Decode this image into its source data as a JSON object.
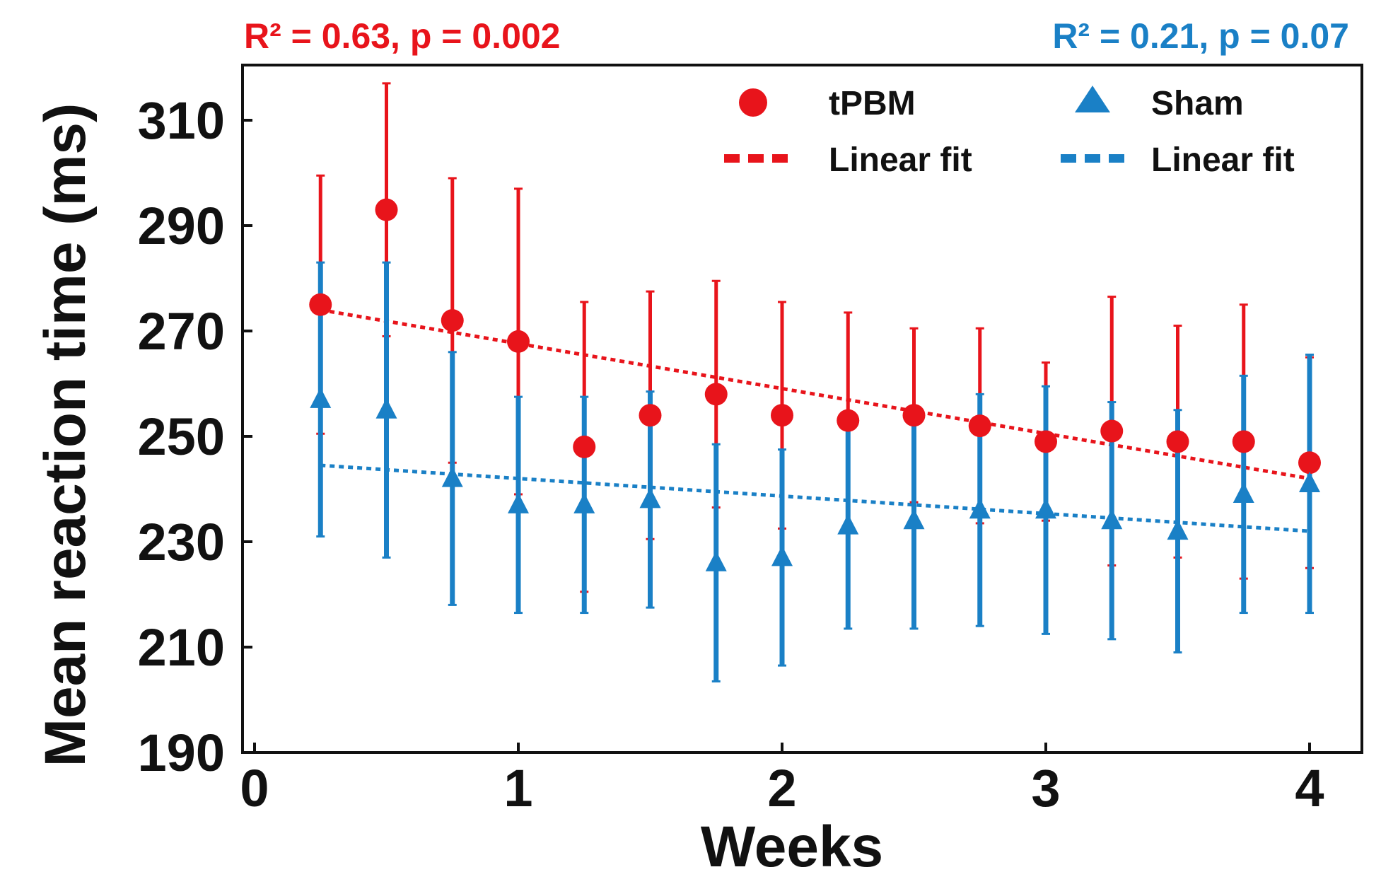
{
  "chart_data": {
    "type": "scatter",
    "title": "",
    "xlabel": "Weeks",
    "ylabel": "Mean reaction time (ms)",
    "xlim": [
      0,
      4.2
    ],
    "ylim": [
      190,
      320
    ],
    "xticks": [
      "0",
      "1",
      "2",
      "3",
      "4"
    ],
    "yticks": [
      "190",
      "210",
      "230",
      "250",
      "270",
      "290",
      "310"
    ],
    "annotations": [
      {
        "text": "R² = 0.63, p = 0.002",
        "color": "#e8141b",
        "position": "top-left"
      },
      {
        "text": "R² = 0.21, p = 0.07",
        "color": "#1a80c6",
        "position": "top-right"
      }
    ],
    "legend": {
      "position": "top-right",
      "entries": [
        {
          "label": "tPBM",
          "marker": "circle",
          "color": "#e8141b"
        },
        {
          "label": "Sham",
          "marker": "triangle",
          "color": "#1a80c6"
        },
        {
          "label": "Linear fit",
          "marker": "dashed-line",
          "color": "#e8141b"
        },
        {
          "label": "Linear fit",
          "marker": "dashed-line",
          "color": "#1a80c6"
        }
      ]
    },
    "series": [
      {
        "name": "tPBM",
        "color": "#e8141b",
        "marker": "circle",
        "x": [
          0.25,
          0.5,
          0.75,
          1.0,
          1.25,
          1.5,
          1.75,
          2.0,
          2.25,
          2.5,
          2.75,
          3.0,
          3.25,
          3.5,
          3.75,
          4.0
        ],
        "y": [
          275,
          293,
          272,
          268,
          248,
          254,
          258,
          254,
          253,
          254,
          252,
          249,
          251,
          249,
          249,
          245
        ],
        "err": [
          24.5,
          24,
          27,
          29,
          27.5,
          23.5,
          21.5,
          21.5,
          20.5,
          16.5,
          18.5,
          15,
          25.5,
          22,
          26,
          20
        ]
      },
      {
        "name": "Sham",
        "color": "#1a80c6",
        "marker": "triangle",
        "x": [
          0.25,
          0.5,
          0.75,
          1.0,
          1.25,
          1.5,
          1.75,
          2.0,
          2.25,
          2.5,
          2.75,
          3.0,
          3.25,
          3.5,
          3.75,
          4.0
        ],
        "y": [
          257,
          255,
          242,
          237,
          237,
          238,
          226,
          227,
          233,
          234,
          236,
          236,
          234,
          232,
          239,
          241
        ],
        "err": [
          26,
          28,
          24,
          20.5,
          20.5,
          20.5,
          22.5,
          20.5,
          19.5,
          20.5,
          22,
          23.5,
          22.5,
          23,
          22.5,
          24.5
        ]
      }
    ],
    "fits": [
      {
        "name": "tPBM linear fit",
        "color": "#e8141b",
        "x": [
          0.25,
          4.0
        ],
        "y": [
          274,
          242
        ]
      },
      {
        "name": "Sham linear fit",
        "color": "#1a80c6",
        "x": [
          0.25,
          4.0
        ],
        "y": [
          244.5,
          232
        ]
      }
    ]
  }
}
